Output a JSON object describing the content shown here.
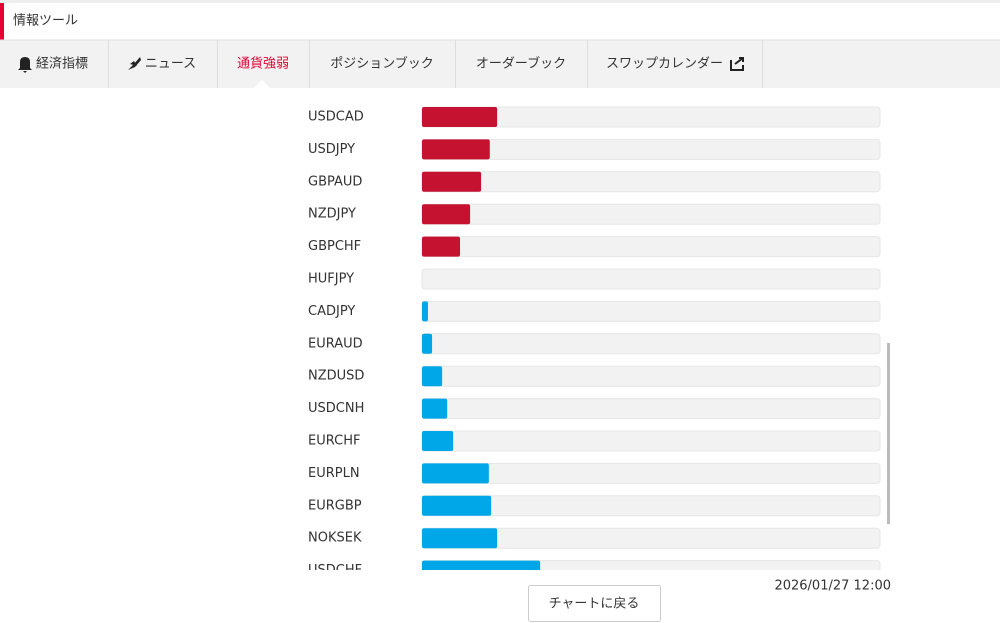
{
  "header": {
    "title": "情報ツール"
  },
  "tabs": [
    "経済指標",
    "ニュース",
    "通貨強弱",
    "ポジションブック",
    "オーダーブック",
    "スワップカレンダー"
  ],
  "active_tab": 2,
  "chart_data": {
    "type": "hbar",
    "categories": [
      "USDCAD",
      "USDJPY",
      "GBPAUD",
      "NZDJPY",
      "GBPCHF",
      "HUFJPY",
      "CADJPY",
      "EURAUD",
      "NZDUSD",
      "USDCNH",
      "EURCHF",
      "EURPLN",
      "EURGBP",
      "NOKSEK",
      "USDCHF"
    ],
    "values": [
      16.4,
      14.8,
      12.9,
      10.5,
      8.3,
      0,
      1.3,
      2.2,
      4.4,
      5.5,
      6.8,
      14.6,
      15.1,
      16.4,
      25.8
    ],
    "colors": [
      "#c41230",
      "#c41230",
      "#c41230",
      "#c41230",
      "#c41230",
      "#c41230",
      "#00a7e8",
      "#00a7e8",
      "#00a7e8",
      "#00a7e8",
      "#00a7e8",
      "#00a7e8",
      "#00a7e8",
      "#00a7e8",
      "#00a7e8"
    ],
    "xlim": [
      0,
      100
    ]
  },
  "timestamp": "2026/01/27 12:00",
  "button": "チャートに戻る"
}
